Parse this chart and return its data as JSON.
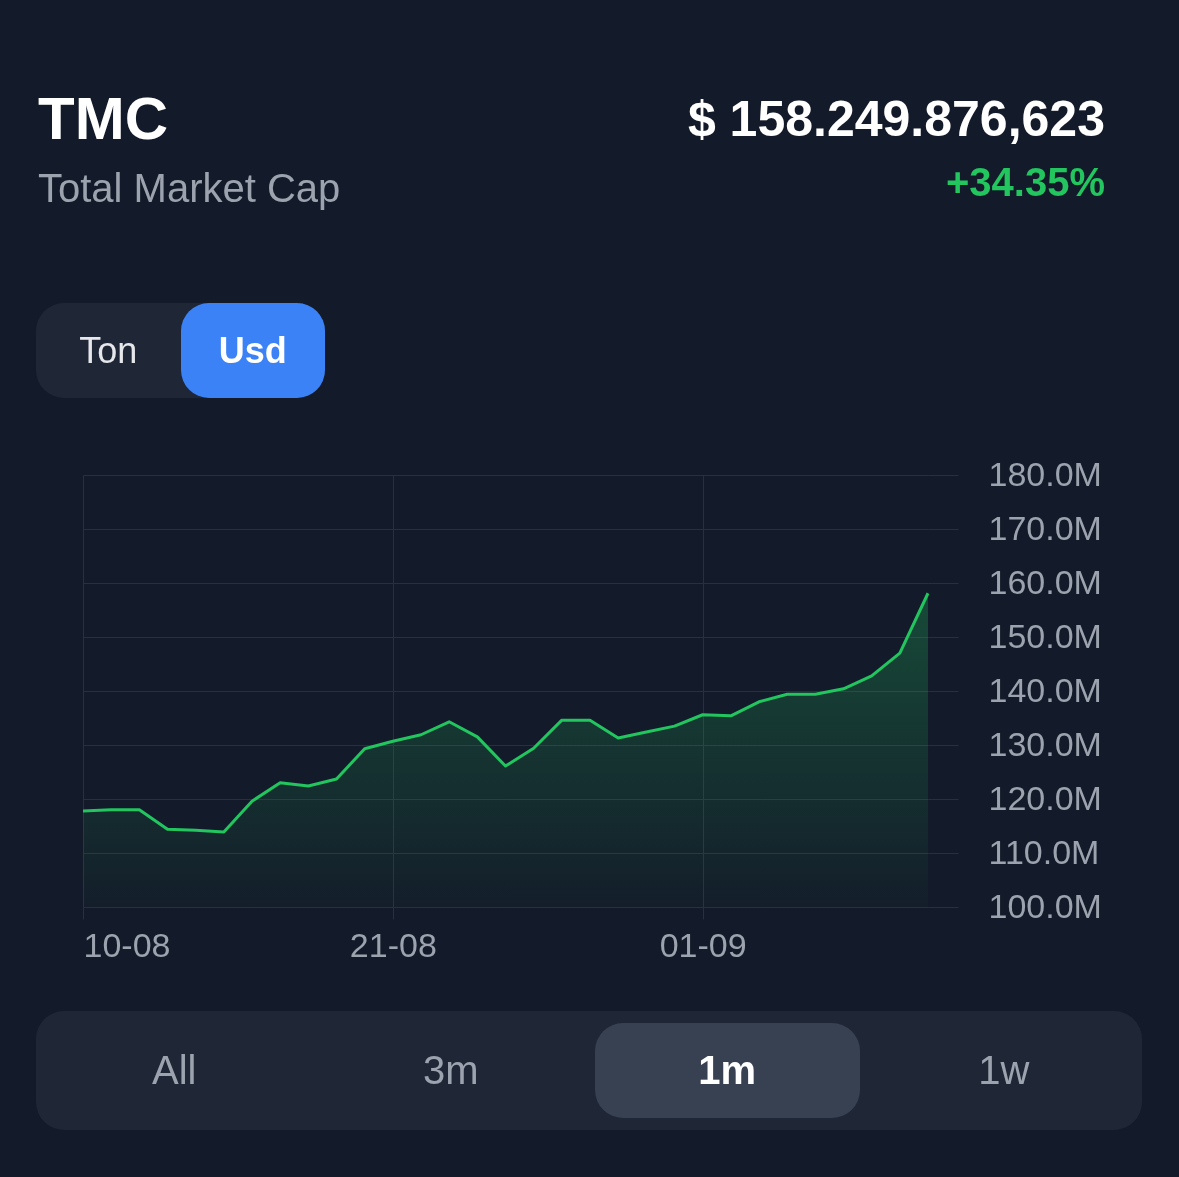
{
  "chart_data": {
    "type": "area",
    "title": "TMC",
    "subtitle": "Total Market Cap",
    "annotations": [
      "$ 158.249.876,623",
      "+34.35%",
      "Ton",
      "Usd",
      "All",
      "3m",
      "1m",
      "1w"
    ],
    "x": [
      "--08-10",
      "--08-11",
      "--08-12",
      "--08-13",
      "--08-14",
      "--08-15",
      "--08-16",
      "--08-17",
      "--08-18",
      "--08-19",
      "--08-20",
      "--08-21",
      "--08-22",
      "--08-23",
      "--08-24",
      "--08-25",
      "--08-26",
      "--08-27",
      "--08-28",
      "--08-29",
      "--08-30",
      "--08-31",
      "--09-01",
      "--09-02",
      "--09-03",
      "--09-04",
      "--09-05",
      "--09-06",
      "--09-07",
      "--09-08",
      "--09-09"
    ],
    "series": [
      {
        "color": "#22c55e",
        "values": [
          117.8,
          118,
          118,
          114.4,
          114.2,
          113.9,
          119.6,
          123,
          122.4,
          123.7,
          129.3,
          130.7,
          131.9,
          134.3,
          131.5,
          126.1,
          129.4,
          134.6,
          134.6,
          131.3,
          132.4,
          133.5,
          135.6,
          135.4,
          138,
          139.4,
          139.4,
          140.4,
          142.8,
          147,
          158.1
        ]
      }
    ],
    "xlim": [
      "--08-10",
      "--09-09"
    ],
    "xticks": [
      {
        "value": "--08-10",
        "label": "10-08"
      },
      {
        "value": "--08-21",
        "label": "21-08"
      },
      {
        "value": "--09-01",
        "label": "01-09"
      }
    ],
    "ylim": [
      100,
      180
    ],
    "yticks": [
      {
        "value": 100,
        "label": "100.0M"
      },
      {
        "value": 110,
        "label": "110.0M"
      },
      {
        "value": 120,
        "label": "120.0M"
      },
      {
        "value": 130,
        "label": "130.0M"
      },
      {
        "value": 140,
        "label": "140.0M"
      },
      {
        "value": 150,
        "label": "150.0M"
      },
      {
        "value": 160,
        "label": "160.0M"
      },
      {
        "value": 170,
        "label": "170.0M"
      },
      {
        "value": 180,
        "label": "180.0M"
      }
    ],
    "grid": true
  }
}
